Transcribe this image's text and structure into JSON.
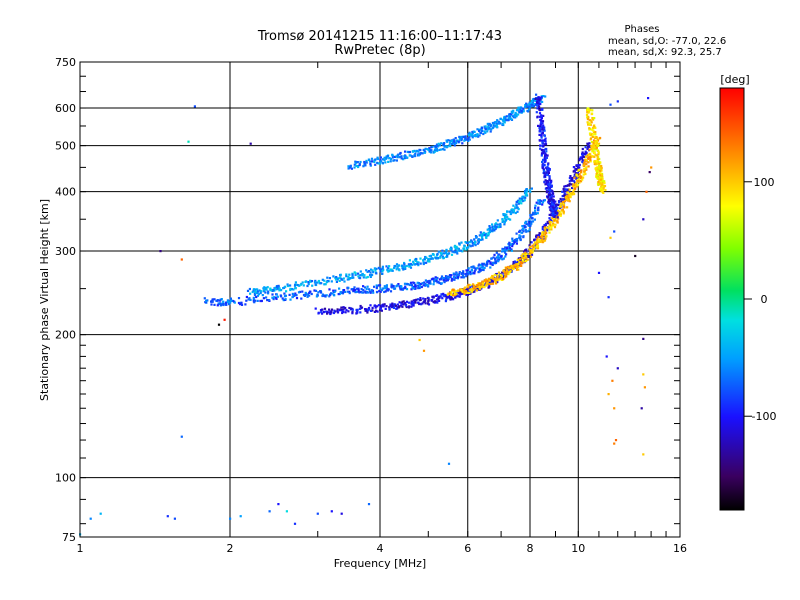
{
  "chart_data": {
    "type": "scatter",
    "title": "Tromsø 20141215 11:16:00–11:17:43",
    "subtitle": "RwPretec (8p)",
    "xlabel": "Frequency [MHz]",
    "ylabel": "Stationary phase Virtual Height [km]",
    "xscale": "log",
    "yscale": "log",
    "xlim": [
      1,
      16
    ],
    "ylim": [
      75,
      750
    ],
    "xticks": [
      1,
      2,
      4,
      6,
      8,
      10,
      16
    ],
    "xtick_labels": [
      "1",
      "2",
      "4",
      "6",
      "8",
      "10",
      "16"
    ],
    "yticks": [
      75,
      100,
      200,
      300,
      400,
      500,
      600,
      750
    ],
    "ytick_labels": [
      "75",
      "100",
      "200",
      "300",
      "400",
      "500",
      "600",
      "750"
    ],
    "grid": true,
    "stats": {
      "title": "Phases",
      "line_o": "mean, sd,O: -77.0, 22.6",
      "line_x": "mean, sd,X:  92.3, 25.7"
    },
    "colorbar": {
      "label": "[deg]",
      "range": [
        -180,
        180
      ],
      "ticks": [
        100,
        0,
        -100
      ],
      "tick_labels": [
        "100",
        "0",
        "-100"
      ],
      "colormap": "rainbow"
    },
    "series": [
      {
        "trace": "lower-o",
        "points": [
          [
            3.0,
            224
          ],
          [
            3.5,
            225
          ],
          [
            4.0,
            228
          ],
          [
            4.5,
            232
          ],
          [
            5.0,
            236
          ],
          [
            5.5,
            241
          ],
          [
            6.0,
            247
          ],
          [
            6.5,
            255
          ],
          [
            7.0,
            266
          ],
          [
            7.5,
            281
          ],
          [
            8.0,
            301
          ],
          [
            8.5,
            328
          ],
          [
            9.0,
            362
          ],
          [
            9.5,
            405
          ],
          [
            10.0,
            450
          ],
          [
            10.5,
            510
          ]
        ],
        "phase": -110
      },
      {
        "trace": "x-mode",
        "points": [
          [
            5.5,
            244
          ],
          [
            6.0,
            249
          ],
          [
            6.5,
            256
          ],
          [
            7.0,
            266
          ],
          [
            7.5,
            279
          ],
          [
            8.0,
            298
          ],
          [
            8.5,
            322
          ],
          [
            9.0,
            350
          ],
          [
            9.5,
            385
          ],
          [
            10.0,
            425
          ],
          [
            10.5,
            470
          ],
          [
            11.0,
            520
          ]
        ],
        "phase": 105
      },
      {
        "trace": "middle-o",
        "points": [
          [
            1.8,
            235
          ],
          [
            2.0,
            234
          ],
          [
            2.5,
            240
          ],
          [
            3.0,
            244
          ],
          [
            3.5,
            248
          ],
          [
            4.0,
            250
          ],
          [
            4.5,
            253
          ],
          [
            5.0,
            257
          ],
          [
            5.5,
            263
          ],
          [
            6.0,
            270
          ],
          [
            6.5,
            280
          ],
          [
            7.0,
            294
          ],
          [
            7.5,
            315
          ],
          [
            8.0,
            345
          ],
          [
            8.5,
            390
          ]
        ],
        "phase": -75
      },
      {
        "trace": "upper-o",
        "points": [
          [
            2.2,
            246
          ],
          [
            2.5,
            250
          ],
          [
            3.0,
            258
          ],
          [
            3.5,
            265
          ],
          [
            4.0,
            272
          ],
          [
            4.5,
            280
          ],
          [
            5.0,
            288
          ],
          [
            5.5,
            298
          ],
          [
            6.0,
            310
          ],
          [
            6.5,
            325
          ],
          [
            7.0,
            345
          ],
          [
            7.5,
            370
          ],
          [
            8.0,
            410
          ]
        ],
        "phase": -50
      },
      {
        "trace": "f2-upper",
        "points": [
          [
            3.5,
            455
          ],
          [
            4.0,
            465
          ],
          [
            4.5,
            478
          ],
          [
            5.0,
            488
          ],
          [
            5.5,
            505
          ],
          [
            6.0,
            520
          ],
          [
            6.5,
            540
          ],
          [
            7.0,
            560
          ],
          [
            7.5,
            585
          ],
          [
            8.0,
            610
          ],
          [
            8.5,
            630
          ]
        ],
        "phase": -60
      },
      {
        "trace": "cusp-o",
        "points": [
          [
            8.3,
            640
          ],
          [
            8.4,
            560
          ],
          [
            8.5,
            500
          ],
          [
            8.6,
            450
          ],
          [
            8.7,
            420
          ],
          [
            8.8,
            390
          ],
          [
            8.9,
            370
          ],
          [
            9.0,
            355
          ]
        ],
        "phase": -100
      },
      {
        "trace": "cusp-x",
        "points": [
          [
            10.5,
            600
          ],
          [
            10.7,
            530
          ],
          [
            10.9,
            470
          ],
          [
            11.0,
            440
          ],
          [
            11.1,
            420
          ],
          [
            11.2,
            400
          ]
        ],
        "phase": 90
      }
    ],
    "scattered_points": [
      [
        1.7,
        605,
        -80
      ],
      [
        1.65,
        510,
        -10
      ],
      [
        2.2,
        505,
        -130
      ],
      [
        1.45,
        300,
        -140
      ],
      [
        1.6,
        288,
        140
      ],
      [
        1.9,
        210,
        -180
      ],
      [
        1.95,
        215,
        170
      ],
      [
        4.8,
        195,
        100
      ],
      [
        4.9,
        185,
        120
      ],
      [
        5.5,
        107,
        -60
      ],
      [
        1.6,
        122,
        -70
      ],
      [
        1.05,
        82,
        -60
      ],
      [
        1.1,
        84,
        -40
      ],
      [
        1.5,
        83,
        -90
      ],
      [
        1.55,
        82,
        -80
      ],
      [
        2.0,
        82,
        -60
      ],
      [
        2.1,
        83,
        -50
      ],
      [
        2.4,
        85,
        -70
      ],
      [
        2.5,
        88,
        -100
      ],
      [
        2.6,
        85,
        -20
      ],
      [
        2.7,
        80,
        -90
      ],
      [
        3.0,
        84,
        -80
      ],
      [
        3.2,
        85,
        -100
      ],
      [
        3.35,
        84,
        -110
      ],
      [
        3.8,
        88,
        -70
      ],
      [
        1.0,
        76,
        -40
      ],
      [
        11.5,
        150,
        110
      ],
      [
        11.7,
        160,
        130
      ],
      [
        11.8,
        140,
        120
      ],
      [
        11.9,
        120,
        140
      ],
      [
        12.0,
        170,
        -120
      ],
      [
        13.5,
        165,
        100
      ],
      [
        13.6,
        155,
        120
      ],
      [
        13.4,
        140,
        -130
      ],
      [
        13.5,
        196,
        -140
      ],
      [
        13.0,
        293,
        -170
      ],
      [
        13.5,
        350,
        -120
      ],
      [
        13.7,
        400,
        140
      ],
      [
        13.9,
        440,
        -150
      ],
      [
        14.0,
        450,
        120
      ],
      [
        13.8,
        630,
        -100
      ],
      [
        12.0,
        620,
        -90
      ],
      [
        11.6,
        610,
        -80
      ],
      [
        11.5,
        240,
        -90
      ],
      [
        11.0,
        270,
        -100
      ],
      [
        11.8,
        330,
        -80
      ],
      [
        11.6,
        320,
        100
      ],
      [
        11.4,
        180,
        -100
      ],
      [
        13.5,
        112,
        100
      ],
      [
        11.8,
        118,
        130
      ]
    ]
  }
}
